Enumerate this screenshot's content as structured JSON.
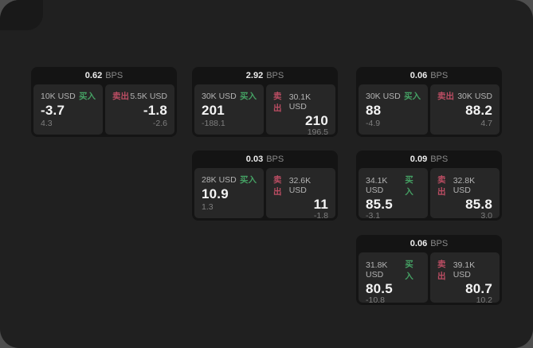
{
  "labels": {
    "bps_unit": "BPS",
    "buy": "买入",
    "sell": "卖出"
  },
  "colors": {
    "buy_green": "#45a164",
    "sell_red": "#bb4d63",
    "window_bg": "#202020",
    "card_bg": "#141414",
    "panel_bg": "#272727"
  },
  "cards": [
    {
      "bps": "0.62",
      "buy": {
        "notional": "10K USD",
        "price": "-3.7",
        "delta": "4.3"
      },
      "sell": {
        "notional": "5.5K USD",
        "price": "-1.8",
        "delta": "-2.6"
      }
    },
    {
      "bps": "2.92",
      "buy": {
        "notional": "30K USD",
        "price": "201",
        "delta": "-188.1"
      },
      "sell": {
        "notional": "30.1K USD",
        "price": "210",
        "delta": "196.5"
      }
    },
    {
      "bps": "0.06",
      "buy": {
        "notional": "30K USD",
        "price": "88",
        "delta": "-4.9"
      },
      "sell": {
        "notional": "30K USD",
        "price": "88.2",
        "delta": "4.7"
      }
    },
    {
      "bps": "0.03",
      "buy": {
        "notional": "28K USD",
        "price": "10.9",
        "delta": "1.3"
      },
      "sell": {
        "notional": "32.6K USD",
        "price": "11",
        "delta": "-1.8"
      }
    },
    {
      "bps": "0.09",
      "buy": {
        "notional": "34.1K USD",
        "price": "85.5",
        "delta": "-3.1"
      },
      "sell": {
        "notional": "32.8K USD",
        "price": "85.8",
        "delta": "3.0"
      }
    },
    {
      "bps": "0.06",
      "buy": {
        "notional": "31.8K USD",
        "price": "80.5",
        "delta": "-10.8"
      },
      "sell": {
        "notional": "39.1K USD",
        "price": "80.7",
        "delta": "10.2"
      }
    }
  ]
}
